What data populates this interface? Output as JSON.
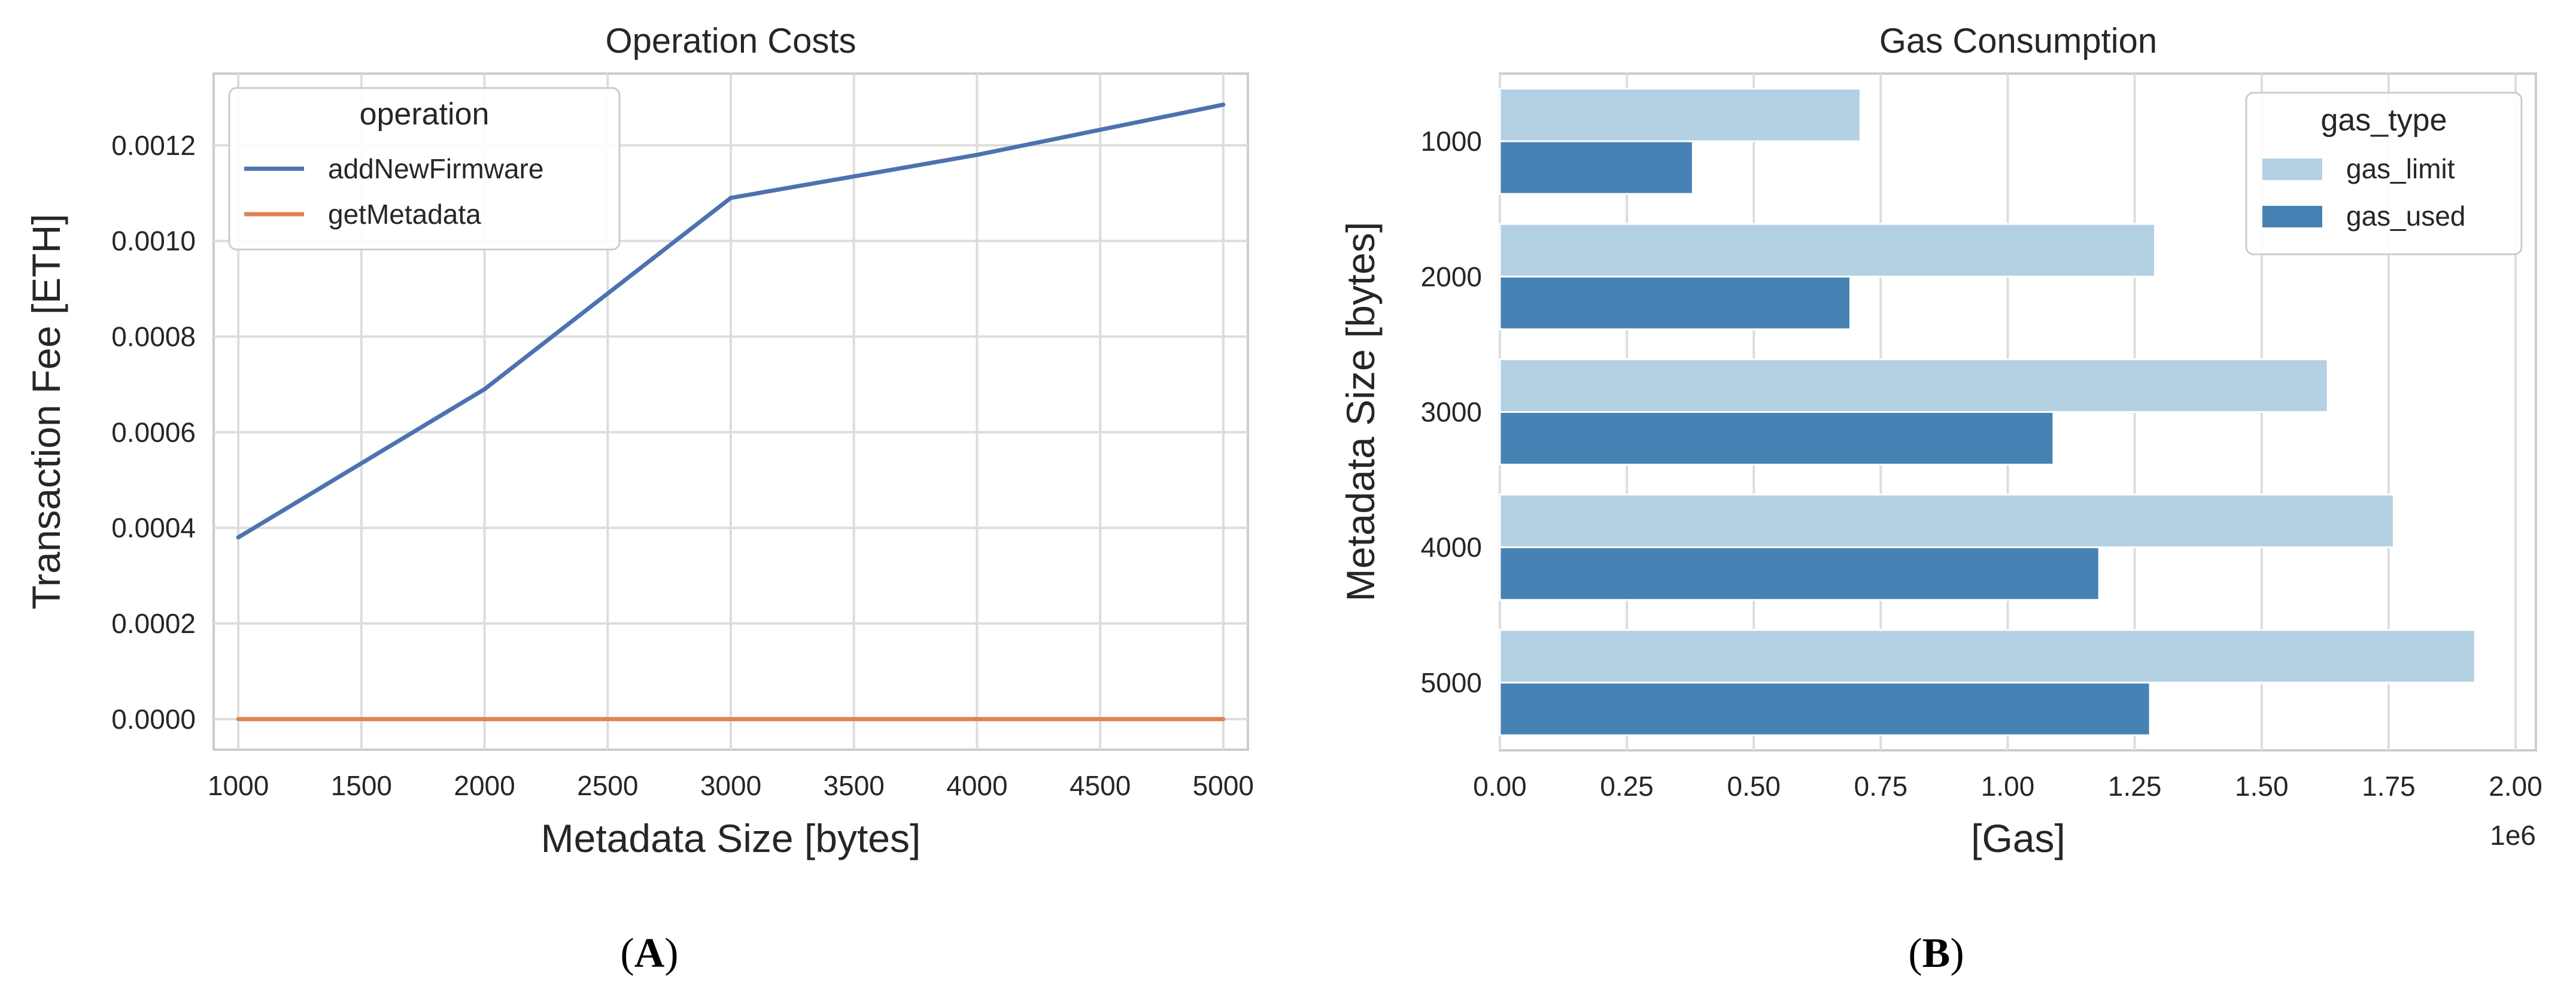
{
  "colors": {
    "addNewFirmware": "#4c72b0",
    "getMetadata": "#dd8452",
    "gas_limit": "#b4d0e3",
    "gas_used": "#4682b4",
    "grid": "#dddddd",
    "frame": "#cccccc"
  },
  "panels": [
    {
      "open": "(",
      "letter": "A",
      "close": ")"
    },
    {
      "open": "(",
      "letter": "B",
      "close": ")"
    }
  ],
  "chart_data": [
    {
      "type": "line",
      "title": "Operation Costs",
      "xlabel": "Metadata Size [bytes]",
      "ylabel": "Transaction Fee [ETH]",
      "x": [
        1000,
        2000,
        3000,
        4000,
        5000
      ],
      "xlim": [
        900,
        5100
      ],
      "ylim": [
        -6.4e-05,
        0.00135
      ],
      "xticks": [
        1000,
        1500,
        2000,
        2500,
        3000,
        3500,
        4000,
        4500,
        5000
      ],
      "yticks": [
        "0.0000",
        "0.0002",
        "0.0004",
        "0.0006",
        "0.0008",
        "0.0010",
        "0.0012"
      ],
      "grid": true,
      "legend": {
        "title": "operation",
        "placement": "top-left"
      },
      "series": [
        {
          "name": "addNewFirmware",
          "values": [
            0.00038,
            0.00069,
            0.00109,
            0.00118,
            0.001285
          ]
        },
        {
          "name": "getMetadata",
          "values": [
            0,
            0,
            0,
            0,
            0
          ]
        }
      ]
    },
    {
      "type": "bar",
      "orientation": "horizontal",
      "title": "Gas Consumption",
      "xlabel": "[Gas]",
      "ylabel": "Metadata Size [bytes]",
      "x_offset_text": "1e6",
      "categories": [
        "1000",
        "2000",
        "3000",
        "4000",
        "5000"
      ],
      "xlim": [
        0,
        2.04
      ],
      "xticks": [
        "0.00",
        "0.25",
        "0.50",
        "0.75",
        "1.00",
        "1.25",
        "1.50",
        "1.75",
        "2.00"
      ],
      "grid": true,
      "legend": {
        "title": "gas_type",
        "placement": "top-right"
      },
      "series": [
        {
          "name": "gas_limit",
          "values": [
            0.71,
            1.29,
            1.63,
            1.76,
            1.92
          ]
        },
        {
          "name": "gas_used",
          "values": [
            0.38,
            0.69,
            1.09,
            1.18,
            1.28
          ]
        }
      ]
    }
  ]
}
